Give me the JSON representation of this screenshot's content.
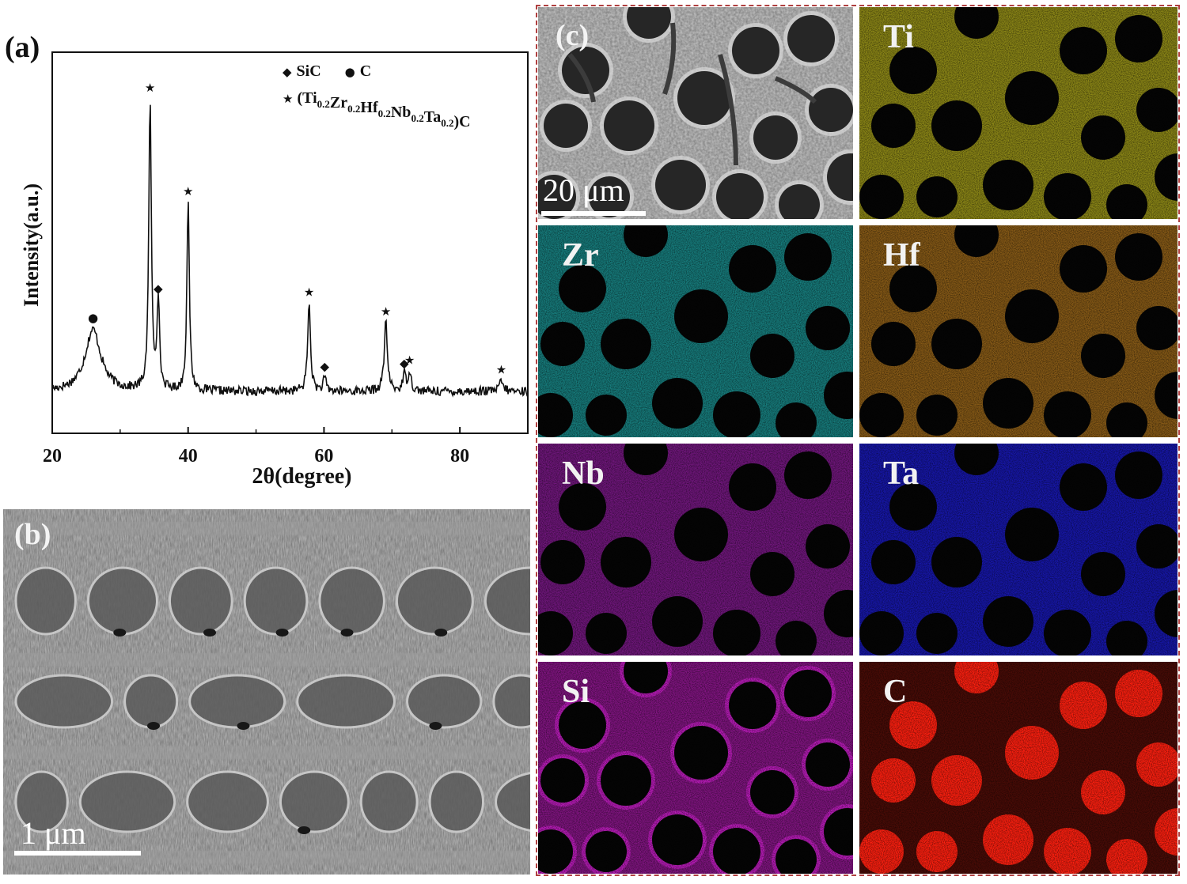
{
  "panels": {
    "a": "(a)",
    "b": "(b)",
    "c": "(c)"
  },
  "chart_data": {
    "type": "line",
    "xlabel": "2θ(degree)",
    "ylabel": "Intensity(a.u.)",
    "xlim": [
      20,
      90
    ],
    "xticks": [
      20,
      40,
      60,
      80
    ],
    "grid": false,
    "legend_position": "top-right",
    "legend": [
      {
        "symbol": "◆",
        "label": "SiC"
      },
      {
        "symbol": "●",
        "label": "C"
      },
      {
        "symbol": "★",
        "label": "(Ti0.2Zr0.2Hf0.2Nb0.2Ta0.2)C"
      }
    ],
    "legend_formula": {
      "open": "(",
      "parts": [
        [
          "Ti",
          "0.2"
        ],
        [
          "Zr",
          "0.2"
        ],
        [
          "Hf",
          "0.2"
        ],
        [
          "Nb",
          "0.2"
        ],
        [
          "Ta",
          "0.2"
        ]
      ],
      "close": ")C"
    },
    "peaks": [
      {
        "x": 26.0,
        "height": 0.19,
        "width": 1.4,
        "phase": "C"
      },
      {
        "x": 34.4,
        "height": 0.9,
        "width": 0.22,
        "phase": "HEC"
      },
      {
        "x": 35.6,
        "height": 0.28,
        "width": 0.22,
        "phase": "SiC"
      },
      {
        "x": 40.0,
        "height": 0.58,
        "width": 0.22,
        "phase": "HEC"
      },
      {
        "x": 57.8,
        "height": 0.27,
        "width": 0.25,
        "phase": "HEC"
      },
      {
        "x": 60.1,
        "height": 0.04,
        "width": 0.25,
        "phase": "SiC"
      },
      {
        "x": 69.1,
        "height": 0.21,
        "width": 0.28,
        "phase": "HEC"
      },
      {
        "x": 71.8,
        "height": 0.05,
        "width": 0.25,
        "phase": "SiC"
      },
      {
        "x": 72.6,
        "height": 0.06,
        "width": 0.28,
        "phase": "HEC"
      },
      {
        "x": 86.1,
        "height": 0.03,
        "width": 0.35,
        "phase": "HEC"
      }
    ]
  },
  "sem_b": {
    "scale_label": "1 μm"
  },
  "sem_c": {
    "scale_label": "20 μm"
  },
  "maps": [
    {
      "element": "Ti",
      "color": "#c8c020"
    },
    {
      "element": "Zr",
      "color": "#20b0b0"
    },
    {
      "element": "Hf",
      "color": "#c08020"
    },
    {
      "element": "Nb",
      "color": "#a020b0"
    },
    {
      "element": "Ta",
      "color": "#2020f0"
    },
    {
      "element": "Si",
      "color": "#d020d0"
    },
    {
      "element": "C",
      "color": "#ff2010"
    }
  ]
}
